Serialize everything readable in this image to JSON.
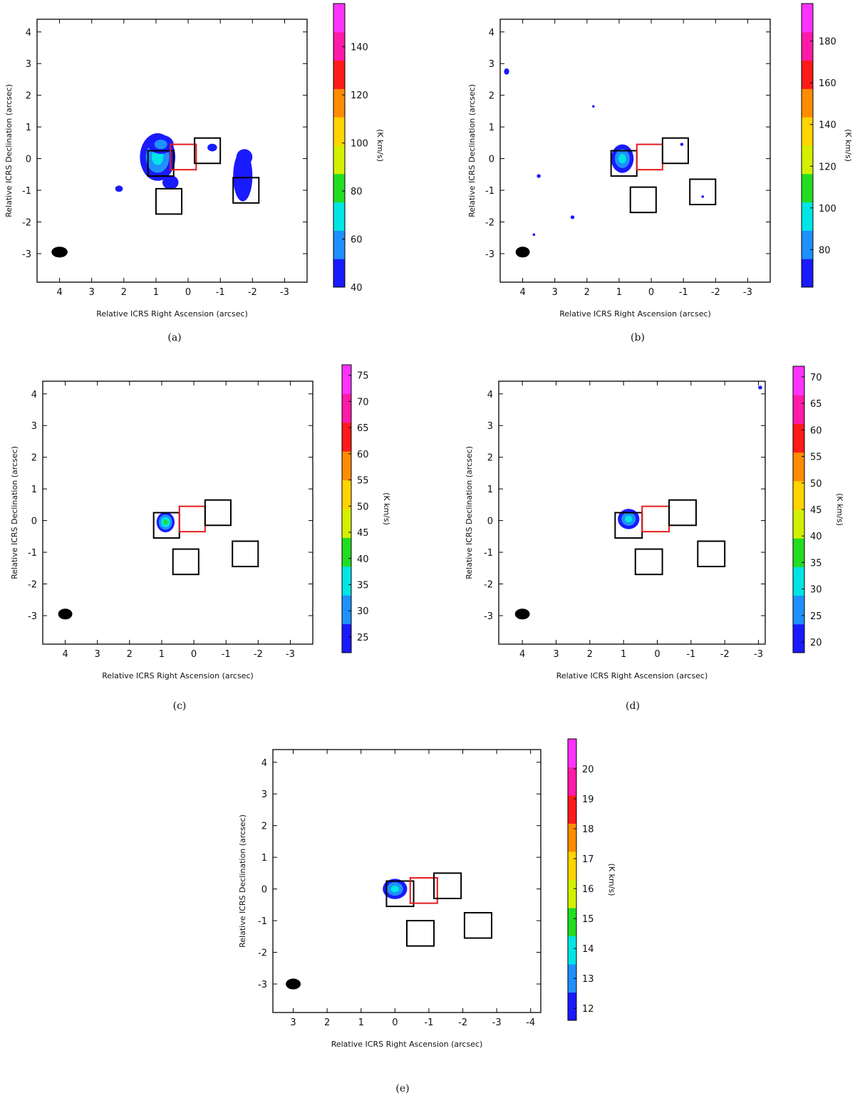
{
  "colormap": [
    "#1a1aff",
    "#1e90ff",
    "#00e5e5",
    "#22dd22",
    "#d4f000",
    "#ffd400",
    "#ff8c00",
    "#ff1a1a",
    "#ff1aa8",
    "#ff33ff"
  ],
  "chart_data": [
    {
      "type": "heatmap",
      "panel_label": "(a)",
      "xlabel": "Relative ICRS Right Ascension (arcsec)",
      "ylabel": "Relative ICRS Declination (arcsec)",
      "xlim": [
        4.7,
        -3.7
      ],
      "ylim": [
        -3.9,
        4.4
      ],
      "xticks": [
        4,
        3,
        2,
        1,
        0,
        -1,
        -2,
        -3
      ],
      "xtick_labels": [
        "4",
        "3",
        "2",
        "1",
        "0",
        "-1",
        "-2",
        "-3"
      ],
      "yticks": [
        -3,
        -2,
        -1,
        0,
        1,
        2,
        3,
        4
      ],
      "ytick_labels": [
        "-3",
        "-2",
        "-1",
        "0",
        "1",
        "2",
        "3",
        "4"
      ],
      "colorbar": {
        "label": "(K km/s)",
        "range": [
          40,
          158
        ],
        "ticks": [
          "40",
          "60",
          "80",
          "100",
          "120",
          "140"
        ],
        "tick_values": [
          40,
          60,
          80,
          100,
          120,
          140
        ]
      },
      "beam": {
        "x": 4.0,
        "y": -2.95,
        "rx": 0.25,
        "ry": 0.17
      },
      "boxes": [
        {
          "x": 0.85,
          "y": -0.15,
          "color": "black"
        },
        {
          "x": 0.15,
          "y": 0.05,
          "color": "red"
        },
        {
          "x": -0.6,
          "y": 0.25,
          "color": "black"
        },
        {
          "x": 0.6,
          "y": -1.35,
          "color": "black"
        },
        {
          "x": -1.8,
          "y": -1.0,
          "color": "black"
        }
      ],
      "blobs": [
        {
          "x": 0.9,
          "y": -0.2,
          "rx": 0.26,
          "ry": 0.36,
          "peak": 1.0
        },
        {
          "x": 0.95,
          "y": 0.05,
          "rx": 0.55,
          "ry": 0.75,
          "peak": 0.32
        },
        {
          "x": 0.85,
          "y": 0.45,
          "rx": 0.4,
          "ry": 0.3,
          "peak": 0.15
        },
        {
          "x": 0.55,
          "y": -0.75,
          "rx": 0.25,
          "ry": 0.22,
          "peak": 0.1
        },
        {
          "x": -1.7,
          "y": -0.55,
          "rx": 0.3,
          "ry": 0.8,
          "peak": 0.12
        },
        {
          "x": -1.75,
          "y": 0.05,
          "rx": 0.25,
          "ry": 0.25,
          "peak": 0.1
        },
        {
          "x": -0.75,
          "y": 0.35,
          "rx": 0.15,
          "ry": 0.12,
          "peak": 0.09
        },
        {
          "x": 2.15,
          "y": -0.95,
          "rx": 0.12,
          "ry": 0.1,
          "peak": 0.08
        }
      ]
    },
    {
      "type": "heatmap",
      "panel_label": "(b)",
      "xlabel": "Relative ICRS Right Ascension (arcsec)",
      "ylabel": "Relative ICRS Declination (arcsec)",
      "xlim": [
        4.7,
        -3.7
      ],
      "ylim": [
        -3.9,
        4.4
      ],
      "xticks": [
        4,
        3,
        2,
        1,
        0,
        -1,
        -2,
        -3
      ],
      "xtick_labels": [
        "4",
        "3",
        "2",
        "1",
        "0",
        "-1",
        "-2",
        "-3"
      ],
      "yticks": [
        -3,
        -2,
        -1,
        0,
        1,
        2,
        3,
        4
      ],
      "ytick_labels": [
        "-3",
        "-2",
        "-1",
        "0",
        "1",
        "2",
        "3",
        "4"
      ],
      "colorbar": {
        "label": "(K km/s)",
        "range": [
          62,
          198
        ],
        "ticks": [
          "80",
          "100",
          "120",
          "140",
          "160",
          "180"
        ],
        "tick_values": [
          80,
          100,
          120,
          140,
          160,
          180
        ]
      },
      "beam": {
        "x": 4.0,
        "y": -2.95,
        "rx": 0.22,
        "ry": 0.17
      },
      "boxes": [
        {
          "x": 0.85,
          "y": -0.15,
          "color": "black"
        },
        {
          "x": 0.05,
          "y": 0.05,
          "color": "red"
        },
        {
          "x": -0.75,
          "y": 0.25,
          "color": "black"
        },
        {
          "x": 0.25,
          "y": -1.3,
          "color": "black"
        },
        {
          "x": -1.6,
          "y": -1.05,
          "color": "black"
        }
      ],
      "blobs": [
        {
          "x": 0.9,
          "y": -0.15,
          "rx": 0.17,
          "ry": 0.27,
          "peak": 1.0
        },
        {
          "x": 0.9,
          "y": 0.0,
          "rx": 0.35,
          "ry": 0.45,
          "peak": 0.3
        },
        {
          "x": 4.5,
          "y": 2.75,
          "rx": 0.08,
          "ry": 0.1,
          "peak": 0.07
        },
        {
          "x": 1.8,
          "y": 1.65,
          "rx": 0.04,
          "ry": 0.04,
          "peak": 0.07
        },
        {
          "x": 3.5,
          "y": -0.55,
          "rx": 0.06,
          "ry": 0.06,
          "peak": 0.07
        },
        {
          "x": 2.45,
          "y": -1.85,
          "rx": 0.06,
          "ry": 0.06,
          "peak": 0.07
        },
        {
          "x": 3.65,
          "y": -2.4,
          "rx": 0.04,
          "ry": 0.04,
          "peak": 0.07
        },
        {
          "x": -0.95,
          "y": 0.45,
          "rx": 0.05,
          "ry": 0.05,
          "peak": 0.07
        },
        {
          "x": -1.6,
          "y": -1.2,
          "rx": 0.04,
          "ry": 0.04,
          "peak": 0.07
        }
      ]
    },
    {
      "type": "heatmap",
      "panel_label": "(c)",
      "xlabel": "Relative ICRS Right Ascension (arcsec)",
      "ylabel": "Relative ICRS Declination (arcsec)",
      "xlim": [
        4.7,
        -3.7
      ],
      "ylim": [
        -3.9,
        4.4
      ],
      "xticks": [
        4,
        3,
        2,
        1,
        0,
        -1,
        -2,
        -3
      ],
      "xtick_labels": [
        "4",
        "3",
        "2",
        "1",
        "0",
        "-1",
        "-2",
        "-3"
      ],
      "yticks": [
        -3,
        -2,
        -1,
        0,
        1,
        2,
        3,
        4
      ],
      "ytick_labels": [
        "-3",
        "-2",
        "-1",
        "0",
        "1",
        "2",
        "3",
        "4"
      ],
      "colorbar": {
        "label": "(K km/s)",
        "range": [
          22,
          77
        ],
        "ticks": [
          "25",
          "30",
          "35",
          "40",
          "45",
          "50",
          "55",
          "60",
          "65",
          "70",
          "75"
        ],
        "tick_values": [
          25,
          30,
          35,
          40,
          45,
          50,
          55,
          60,
          65,
          70,
          75
        ]
      },
      "beam": {
        "x": 4.0,
        "y": -2.95,
        "rx": 0.22,
        "ry": 0.17
      },
      "boxes": [
        {
          "x": 0.85,
          "y": -0.15,
          "color": "black"
        },
        {
          "x": 0.05,
          "y": 0.05,
          "color": "red"
        },
        {
          "x": -0.75,
          "y": 0.25,
          "color": "black"
        },
        {
          "x": 0.25,
          "y": -1.3,
          "color": "black"
        },
        {
          "x": -1.6,
          "y": -1.05,
          "color": "black"
        }
      ],
      "blobs": [
        {
          "x": 0.88,
          "y": -0.05,
          "rx": 0.17,
          "ry": 0.22,
          "peak": 1.0
        },
        {
          "x": 0.88,
          "y": -0.05,
          "rx": 0.28,
          "ry": 0.32,
          "peak": 0.35
        }
      ]
    },
    {
      "type": "heatmap",
      "panel_label": "(d)",
      "xlabel": "Relative ICRS Right Ascension (arcsec)",
      "ylabel": "Relative ICRS Declination (arcsec)",
      "xlim": [
        4.7,
        -3.2
      ],
      "ylim": [
        -3.9,
        4.4
      ],
      "xticks": [
        4,
        3,
        2,
        1,
        0,
        -1,
        -2,
        -3
      ],
      "xtick_labels": [
        "4",
        "3",
        "2",
        "1",
        "0",
        "-1",
        "-2",
        "-3"
      ],
      "yticks": [
        -3,
        -2,
        -1,
        0,
        1,
        2,
        3,
        4
      ],
      "ytick_labels": [
        "-3",
        "-2",
        "-1",
        "0",
        "1",
        "2",
        "3",
        "4"
      ],
      "colorbar": {
        "label": "(K km/s)",
        "range": [
          18,
          72
        ],
        "ticks": [
          "20",
          "25",
          "30",
          "35",
          "40",
          "45",
          "50",
          "55",
          "60",
          "65",
          "70"
        ],
        "tick_values": [
          20,
          25,
          30,
          35,
          40,
          45,
          50,
          55,
          60,
          65,
          70
        ]
      },
      "beam": {
        "x": 4.0,
        "y": -2.95,
        "rx": 0.22,
        "ry": 0.17
      },
      "boxes": [
        {
          "x": 0.85,
          "y": -0.15,
          "color": "black"
        },
        {
          "x": 0.05,
          "y": 0.05,
          "color": "red"
        },
        {
          "x": -0.75,
          "y": 0.25,
          "color": "black"
        },
        {
          "x": 0.25,
          "y": -1.3,
          "color": "black"
        },
        {
          "x": -1.6,
          "y": -1.05,
          "color": "black"
        }
      ],
      "blobs": [
        {
          "x": 0.9,
          "y": 0.0,
          "rx": 0.19,
          "ry": 0.2,
          "peak": 1.0
        },
        {
          "x": 0.85,
          "y": 0.05,
          "rx": 0.32,
          "ry": 0.32,
          "peak": 0.3
        },
        {
          "x": -3.05,
          "y": 4.2,
          "rx": 0.06,
          "ry": 0.06,
          "peak": 0.05
        }
      ]
    },
    {
      "type": "heatmap",
      "panel_label": "(e)",
      "xlabel": "Relative ICRS Right Ascension (arcsec)",
      "ylabel": "Relative ICRS Declination (arcsec)",
      "xlim": [
        3.6,
        -4.3
      ],
      "ylim": [
        -3.9,
        4.4
      ],
      "xticks": [
        3,
        2,
        1,
        0,
        -1,
        -2,
        -3,
        -4
      ],
      "xtick_labels": [
        "3",
        "2",
        "1",
        "0",
        "-1",
        "-2",
        "-3",
        "-4"
      ],
      "yticks": [
        -3,
        -2,
        -1,
        0,
        1,
        2,
        3,
        4
      ],
      "ytick_labels": [
        "-3",
        "-2",
        "-1",
        "0",
        "1",
        "2",
        "3",
        "4"
      ],
      "colorbar": {
        "label": "(K km/s)",
        "range": [
          11.6,
          21.0
        ],
        "ticks": [
          "12",
          "13",
          "14",
          "15",
          "16",
          "17",
          "18",
          "19",
          "20"
        ],
        "tick_values": [
          12,
          13,
          14,
          15,
          16,
          17,
          18,
          19,
          20
        ]
      },
      "beam": {
        "x": 3.0,
        "y": -3.0,
        "rx": 0.22,
        "ry": 0.17
      },
      "boxes": [
        {
          "x": -0.15,
          "y": -0.15,
          "color": "black"
        },
        {
          "x": -0.85,
          "y": -0.05,
          "color": "red"
        },
        {
          "x": -1.55,
          "y": 0.1,
          "color": "black"
        },
        {
          "x": -0.75,
          "y": -1.4,
          "color": "black"
        },
        {
          "x": -2.45,
          "y": -1.15,
          "color": "black"
        }
      ],
      "blobs": [
        {
          "x": 0.05,
          "y": -0.05,
          "rx": 0.2,
          "ry": 0.25,
          "peak": 1.0
        },
        {
          "x": 0.0,
          "y": 0.0,
          "rx": 0.36,
          "ry": 0.32,
          "peak": 0.3
        }
      ]
    }
  ]
}
